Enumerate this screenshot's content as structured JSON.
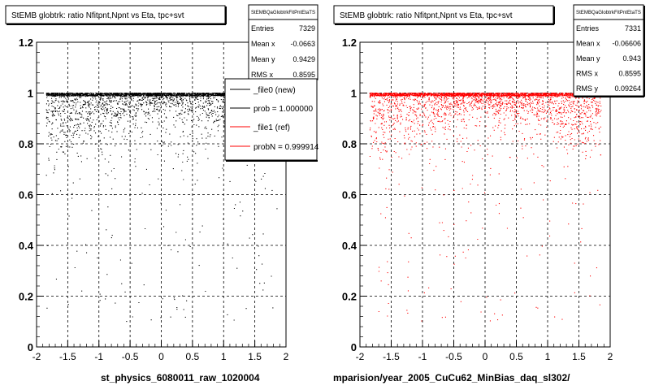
{
  "panels": [
    {
      "title": "StEMB globtrk: ratio Nfitpnt,Npnt vs Eta, tpc+svt",
      "xlabel": "st_physics_6080011_raw_1020004",
      "stats": {
        "name": "StEMBQaGlobtrkFitPntEtaTS",
        "rows": [
          {
            "label": "Entries",
            "value": "7329"
          },
          {
            "label": "Mean x",
            "value": "-0.0663"
          },
          {
            "label": "Mean y",
            "value": "0.9429"
          },
          {
            "label": "RMS x",
            "value": "0.8595"
          }
        ]
      },
      "legend": {
        "entries": [
          {
            "label": "_file0 (new)",
            "color": "#000000"
          },
          {
            "label": "prob = 1.000000",
            "color": "#000000"
          },
          {
            "label": "_file1 (ref)",
            "color": "#ff0000"
          },
          {
            "label": "probN = 0.999914",
            "color": "#ff0000"
          }
        ]
      }
    },
    {
      "title": "StEMB globtrk: ratio Nfitpnt,Npnt vs Eta, tpc+svt",
      "xlabel": "mparision/year_2005_CuCu62_MinBias_daq_sl302/",
      "stats": {
        "name": "StEMBQaGlobtrkFitPntEtaTS",
        "rows": [
          {
            "label": "Entries",
            "value": "7331"
          },
          {
            "label": "Mean x",
            "value": "-0.06606"
          },
          {
            "label": "Mean y",
            "value": "0.943"
          },
          {
            "label": "RMS x",
            "value": "0.8595"
          },
          {
            "label": "RMS y",
            "value": "0.09264"
          }
        ]
      }
    }
  ],
  "chart_data": [
    {
      "type": "scatter",
      "title": "StEMB globtrk: ratio Nfitpnt,Npnt vs Eta, tpc+svt",
      "xlabel": "st_physics_6080011_raw_1020004",
      "ylabel": "",
      "xlim": [
        -2,
        2
      ],
      "ylim": [
        0,
        1.2
      ],
      "xticks": [
        "-2",
        "-1.5",
        "-1",
        "-0.5",
        "0",
        "0.5",
        "1",
        "1.5",
        "2"
      ],
      "yticks": [
        "0",
        "0.2",
        "0.4",
        "0.6",
        "0.8",
        "1",
        "1.2"
      ],
      "grid": true,
      "color": "#000000",
      "series": [
        {
          "name": "_file0 (new)",
          "entries": 7329,
          "x_range": [
            -1.85,
            1.85
          ],
          "dense_band_y": [
            0.96,
            1.0
          ]
        }
      ]
    },
    {
      "type": "scatter",
      "title": "StEMB globtrk: ratio Nfitpnt,Npnt vs Eta, tpc+svt",
      "xlabel": "mparision/year_2005_CuCu62_MinBias_daq_sl302/",
      "ylabel": "",
      "xlim": [
        -2,
        2
      ],
      "ylim": [
        0,
        1.2
      ],
      "xticks": [
        "-2",
        "-1.5",
        "-1",
        "-0.5",
        "0",
        "0.5",
        "1",
        "1.5",
        "2"
      ],
      "yticks": [
        "0",
        "0.2",
        "0.4",
        "0.6",
        "0.8",
        "1",
        "1.2"
      ],
      "grid": true,
      "color": "#ff0000",
      "series": [
        {
          "name": "_file1 (ref)",
          "entries": 7331,
          "x_range": [
            -1.85,
            1.85
          ],
          "dense_band_y": [
            0.96,
            1.0
          ]
        }
      ]
    }
  ]
}
